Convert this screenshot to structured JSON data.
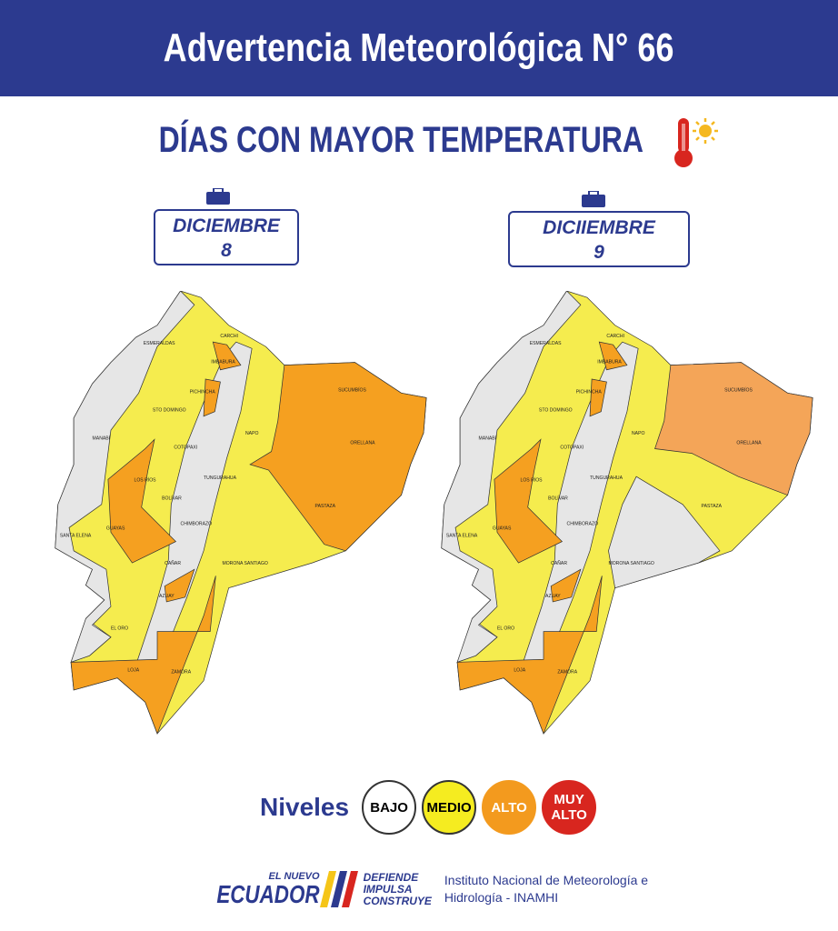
{
  "header": {
    "title": "Advertencia Meteorológica N° 66"
  },
  "subtitle": "DÍAS CON MAYOR TEMPERATURA",
  "subtitle_icon": "thermometer-sun-icon",
  "colors": {
    "brand": "#2c3a8f",
    "bajo": "#e6e6e6",
    "medio": "#f5ec4e",
    "alto": "#f5a020",
    "alto_light": "#f4a558",
    "muy_alto": "#d8261f"
  },
  "maps": [
    {
      "date_month": "DICIEMBRE",
      "date_day": "8",
      "east_level": "alto"
    },
    {
      "date_month": "DICIIEMBRE",
      "date_day": "9",
      "east_level": "alto_light"
    }
  ],
  "province_labels": [
    "ESMERALDAS",
    "CARCHI",
    "IMBABURA",
    "PICHINCHA",
    "STO DOMINGO",
    "MANABÍ",
    "SUCUMBÍOS",
    "NAPO",
    "ORELLANA",
    "COTOPAXI",
    "TUNGURAHUA",
    "LOS RÍOS",
    "BOLÍVAR",
    "PASTAZA",
    "SANTA ELENA",
    "GUAYAS",
    "CHIMBORAZO",
    "CAÑAR",
    "MORONA SANTIAGO",
    "AZUAY",
    "EL ORO",
    "LOJA",
    "ZAMORA"
  ],
  "legend": {
    "label": "Niveles",
    "levels": [
      {
        "name": "BAJO",
        "color": "#ffffff"
      },
      {
        "name": "MEDIO",
        "color": "#f5ec20"
      },
      {
        "name": "ALTO",
        "color": "#f39a1e"
      },
      {
        "name": "MUY ALTO",
        "color": "#d8261f"
      }
    ]
  },
  "footer": {
    "logo_top": "EL NUEVO",
    "logo_main": "ECUADOR",
    "logo_right": [
      "DEFIENDE",
      "IMPULSA",
      "CONSTRUYE"
    ],
    "institute_line1": "Instituto Nacional de Meteorología e",
    "institute_line2": "Hidrología - INAMHI"
  }
}
